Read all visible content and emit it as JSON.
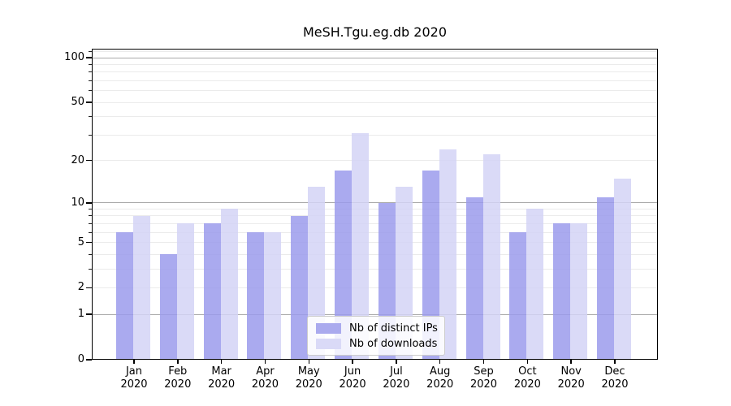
{
  "title": "MeSH.Tgu.eg.db 2020",
  "chart_data": {
    "type": "bar",
    "title": "MeSH.Tgu.eg.db 2020",
    "categories": [
      "Jan",
      "Feb",
      "Mar",
      "Apr",
      "May",
      "Jun",
      "Jul",
      "Aug",
      "Sep",
      "Oct",
      "Nov",
      "Dec"
    ],
    "x_sublabel": "2020",
    "series": [
      {
        "name": "Nb of distinct IPs",
        "color": "#aaaaee",
        "values": [
          6,
          4,
          7,
          6,
          8,
          17,
          10,
          17,
          11,
          6,
          7,
          11
        ]
      },
      {
        "name": "Nb of downloads",
        "color": "#dadaf7",
        "values": [
          8,
          7,
          9,
          6,
          13,
          31,
          13,
          24,
          22,
          9,
          7,
          15
        ]
      }
    ],
    "xlabel": "",
    "ylabel": "",
    "yscale": "log1p",
    "ylim": [
      0,
      115
    ],
    "yticks": [
      0,
      1,
      2,
      5,
      10,
      20,
      50,
      100
    ],
    "minor_yticks": [
      3,
      4,
      6,
      7,
      8,
      9,
      30,
      40,
      60,
      70,
      80,
      90,
      110
    ],
    "grid": true,
    "legend_position": "lower center"
  },
  "legend": {
    "items": [
      {
        "label": "Nb of distinct IPs",
        "color": "#aaaaee"
      },
      {
        "label": "Nb of downloads",
        "color": "#dadaf7"
      }
    ]
  },
  "colors": {
    "bar_ips": "#aaaaee",
    "bar_downloads": "#dadaf7",
    "grid_major": "#a9a9a9",
    "grid_minor": "#ebebeb",
    "spine": "#000000",
    "legend_border": "#cccccc"
  }
}
